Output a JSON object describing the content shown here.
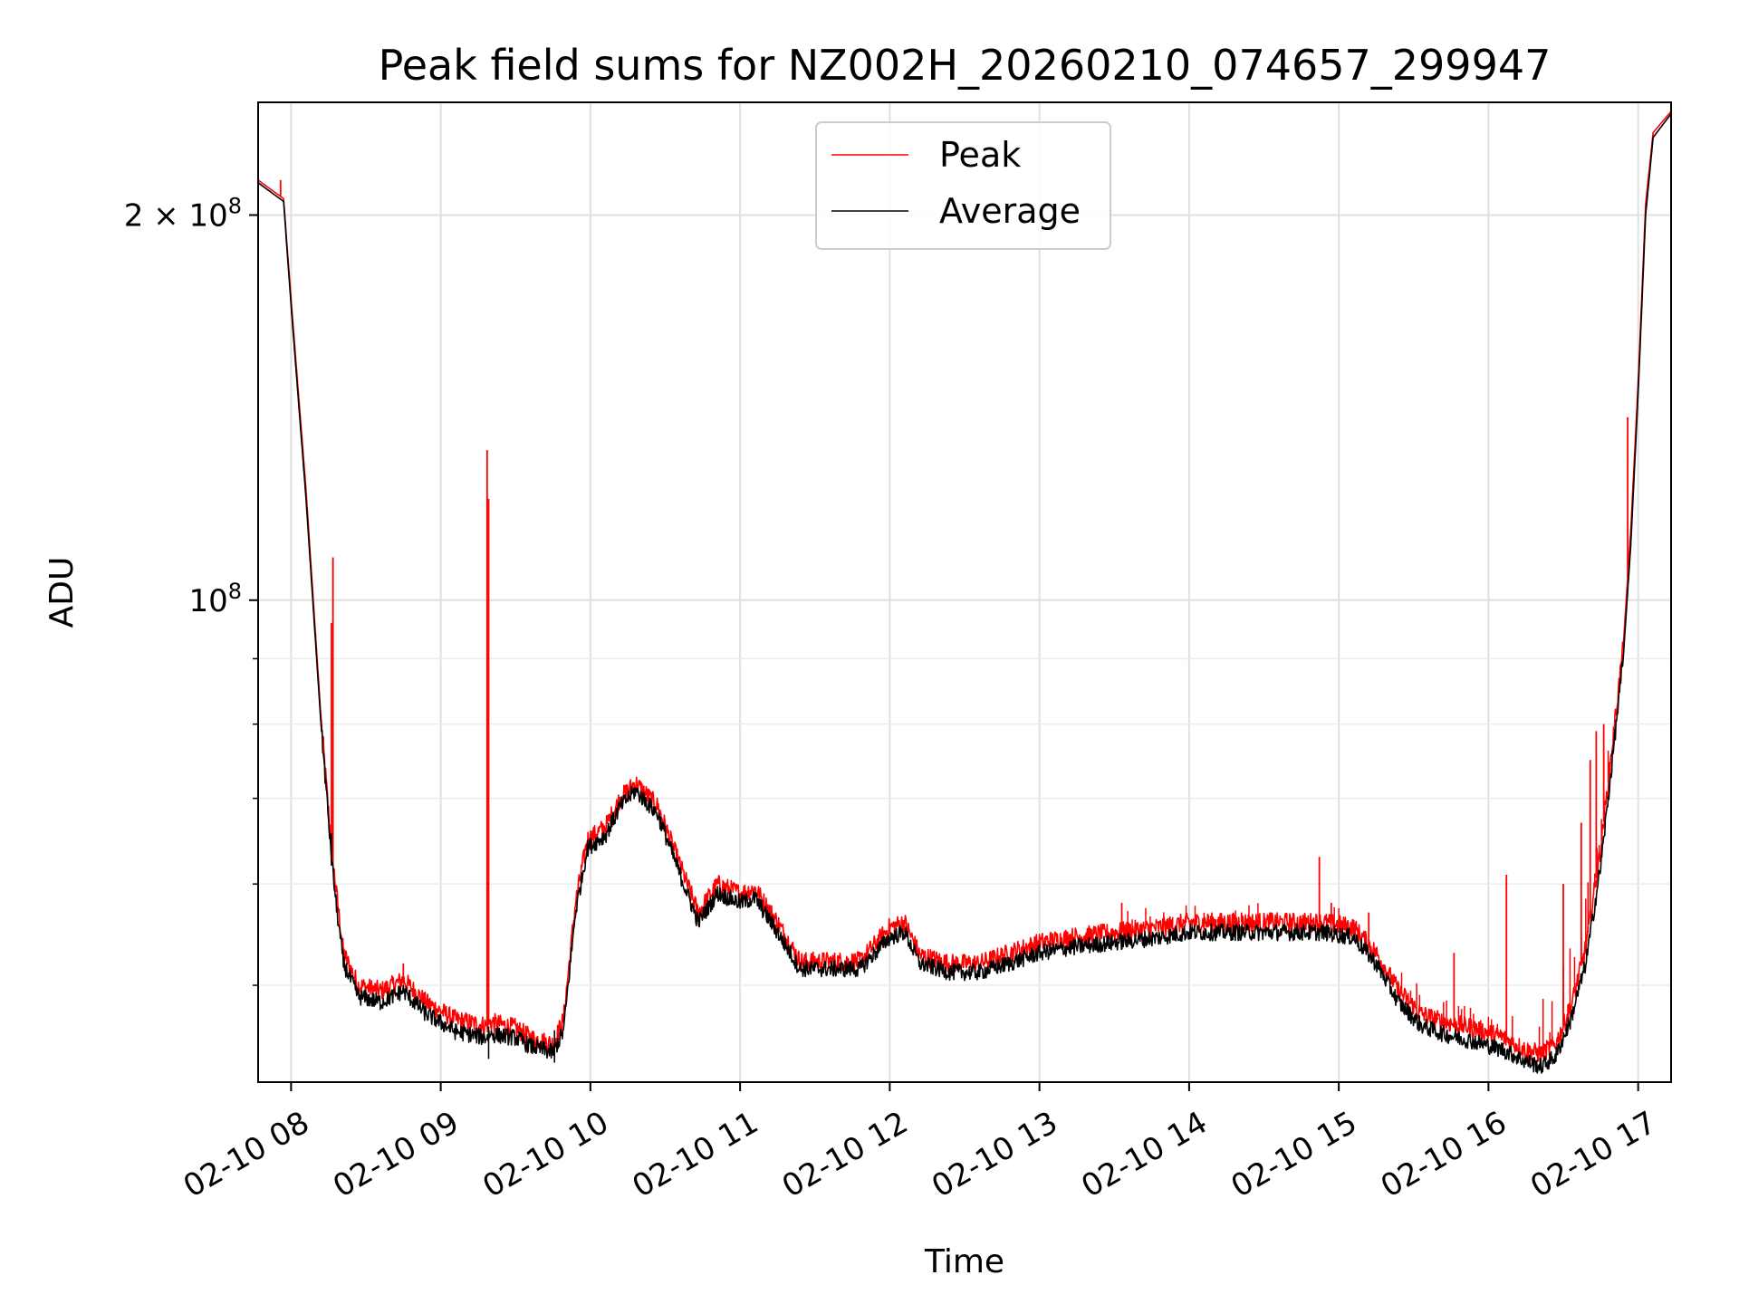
{
  "chart_data": {
    "type": "line",
    "title": "Peak field sums for NZ002H_20260210_074657_299947",
    "xlabel": "Time",
    "ylabel": "ADU",
    "y_scale": "log",
    "ylim": [
      42000000,
      245000000
    ],
    "xlim_hours": [
      7.78,
      17.22
    ],
    "grid": true,
    "legend_location": "upper center",
    "x_ticks": [
      {
        "value": 8,
        "label": "02-10 08"
      },
      {
        "value": 9,
        "label": "02-10 09"
      },
      {
        "value": 10,
        "label": "02-10 10"
      },
      {
        "value": 11,
        "label": "02-10 11"
      },
      {
        "value": 12,
        "label": "02-10 12"
      },
      {
        "value": 13,
        "label": "02-10 13"
      },
      {
        "value": 14,
        "label": "02-10 14"
      },
      {
        "value": 15,
        "label": "02-10 15"
      },
      {
        "value": 16,
        "label": "02-10 16"
      },
      {
        "value": 17,
        "label": "02-10 17"
      }
    ],
    "y_ticks": [
      {
        "value": 100000000,
        "label_base": "10",
        "label_exp": "8"
      },
      {
        "value": 200000000,
        "label_base": "2 × 10",
        "label_exp": "8"
      }
    ],
    "series": [
      {
        "name": "Average",
        "color": "#000000",
        "x": [
          7.78,
          7.9,
          7.95,
          8.0,
          8.1,
          8.2,
          8.27,
          8.3,
          8.35,
          8.45,
          8.6,
          8.75,
          8.9,
          9.1,
          9.3,
          9.33,
          9.5,
          9.6,
          9.75,
          9.82,
          9.9,
          9.98,
          10.1,
          10.2,
          10.3,
          10.45,
          10.6,
          10.72,
          10.85,
          11.0,
          11.1,
          11.25,
          11.4,
          11.6,
          11.8,
          12.0,
          12.1,
          12.2,
          12.4,
          12.6,
          12.8,
          13.0,
          13.2,
          13.5,
          13.8,
          14.0,
          14.3,
          14.6,
          14.9,
          15.1,
          15.25,
          15.4,
          15.55,
          15.7,
          15.9,
          16.1,
          16.25,
          16.35,
          16.45,
          16.55,
          16.65,
          16.75,
          16.8,
          16.9,
          16.95,
          17.0,
          17.05,
          17.1,
          17.22
        ],
        "values": [
          212000000,
          207000000,
          205000000,
          170000000,
          120000000,
          80000000,
          63000000,
          58000000,
          52000000,
          49000000,
          48500000,
          49500000,
          47500000,
          46000000,
          45500000,
          45800000,
          45500000,
          44800000,
          44300000,
          46000000,
          57000000,
          64000000,
          65500000,
          69000000,
          71000000,
          68000000,
          61000000,
          56000000,
          59000000,
          58000000,
          58500000,
          55000000,
          51500000,
          51500000,
          51500000,
          54500000,
          55000000,
          52000000,
          51200000,
          51200000,
          52000000,
          53000000,
          53500000,
          54000000,
          54500000,
          55000000,
          55000000,
          55000000,
          55000000,
          54500000,
          52000000,
          48500000,
          46500000,
          45800000,
          45200000,
          44500000,
          43600000,
          43200000,
          44000000,
          47000000,
          52000000,
          62000000,
          70000000,
          90000000,
          110000000,
          145000000,
          200000000,
          230000000,
          240000000
        ]
      },
      {
        "name": "Peak",
        "color": "#ff0000",
        "x": [
          7.78,
          7.9,
          7.95,
          8.0,
          8.1,
          8.2,
          8.27,
          8.3,
          8.35,
          8.45,
          8.6,
          8.75,
          8.9,
          9.1,
          9.3,
          9.33,
          9.5,
          9.6,
          9.75,
          9.82,
          9.9,
          9.98,
          10.1,
          10.2,
          10.3,
          10.45,
          10.6,
          10.72,
          10.85,
          11.0,
          11.1,
          11.25,
          11.4,
          11.6,
          11.8,
          12.0,
          12.1,
          12.2,
          12.4,
          12.6,
          12.8,
          13.0,
          13.2,
          13.5,
          13.8,
          14.0,
          14.3,
          14.6,
          14.9,
          15.1,
          15.25,
          15.4,
          15.55,
          15.7,
          15.9,
          16.1,
          16.25,
          16.35,
          16.45,
          16.55,
          16.65,
          16.75,
          16.8,
          16.9,
          16.95,
          17.0,
          17.05,
          17.1,
          17.22
        ],
        "values": [
          213000000,
          208000000,
          206000000,
          172000000,
          122000000,
          81000000,
          64000000,
          59500000,
          53000000,
          50000000,
          49500000,
          50500000,
          48500000,
          47000000,
          46500000,
          46800000,
          46300000,
          45500000,
          45000000,
          47000000,
          58000000,
          65000000,
          66500000,
          70000000,
          72000000,
          69000000,
          62000000,
          57000000,
          60000000,
          59000000,
          59500000,
          56000000,
          52200000,
          52200000,
          52200000,
          55500000,
          56000000,
          52800000,
          52000000,
          52000000,
          53000000,
          54000000,
          54500000,
          55000000,
          55500000,
          56000000,
          56000000,
          56000000,
          56000000,
          55500000,
          53000000,
          49500000,
          47500000,
          46800000,
          46300000,
          45500000,
          44500000,
          44200000,
          45000000,
          48000000,
          53500000,
          64000000,
          72000000,
          92000000,
          113000000,
          148000000,
          204000000,
          232000000,
          241000000
        ],
        "spikes": [
          {
            "x": 7.93,
            "value": 213000000
          },
          {
            "x": 8.27,
            "value": 96000000
          },
          {
            "x": 8.28,
            "value": 108000000
          },
          {
            "x": 8.75,
            "value": 52000000
          },
          {
            "x": 9.31,
            "value": 131000000
          },
          {
            "x": 9.32,
            "value": 120000000
          },
          {
            "x": 13.55,
            "value": 58000000
          },
          {
            "x": 14.35,
            "value": 57000000
          },
          {
            "x": 14.55,
            "value": 57000000
          },
          {
            "x": 14.87,
            "value": 63000000
          },
          {
            "x": 14.95,
            "value": 58000000
          },
          {
            "x": 15.2,
            "value": 57000000
          },
          {
            "x": 15.77,
            "value": 53000000
          },
          {
            "x": 16.12,
            "value": 61000000
          },
          {
            "x": 16.5,
            "value": 60000000
          },
          {
            "x": 16.62,
            "value": 67000000
          },
          {
            "x": 16.68,
            "value": 75000000
          },
          {
            "x": 16.72,
            "value": 79000000
          },
          {
            "x": 16.77,
            "value": 80000000
          },
          {
            "x": 16.93,
            "value": 139000000
          }
        ]
      }
    ]
  }
}
